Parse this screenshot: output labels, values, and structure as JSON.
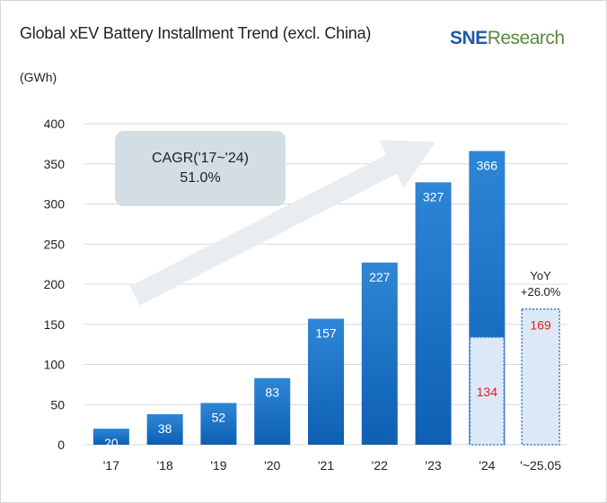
{
  "chart_data": {
    "type": "bar",
    "title": "Global xEV Battery Installment Trend (excl. China)",
    "ylabel": "(GWh)",
    "xlabel": "",
    "ylim": [
      0,
      400
    ],
    "yticks": [
      0,
      50,
      100,
      150,
      200,
      250,
      300,
      350,
      400
    ],
    "grid": true,
    "categories": [
      "'17",
      "'18",
      "'19",
      "'20",
      "'21",
      "'22",
      "'23",
      "'24",
      "'~25.05"
    ],
    "series": [
      {
        "values": [
          20,
          38,
          52,
          83,
          157,
          227,
          327,
          366,
          null
        ]
      },
      {
        "values": [
          null,
          null,
          null,
          null,
          null,
          null,
          null,
          134,
          169
        ]
      }
    ],
    "annotations": {
      "cagr_label": "CAGR('17~'24)",
      "cagr_value": "51.0%",
      "yoy_label": "YoY",
      "yoy_value": "+26.0%"
    }
  },
  "logo": {
    "part1": "SNE",
    "part2": "Research"
  },
  "colors": {
    "bar_top": "#2e86d6",
    "bar_bottom": "#0d5fb3",
    "partial_fill": "#dde8f7",
    "partial_border": "#2a78cc",
    "partial_label": "#e02020",
    "grid": "#d9d9d9",
    "arrow": "#e8edf2",
    "cagr_box": "#d2dde4"
  }
}
